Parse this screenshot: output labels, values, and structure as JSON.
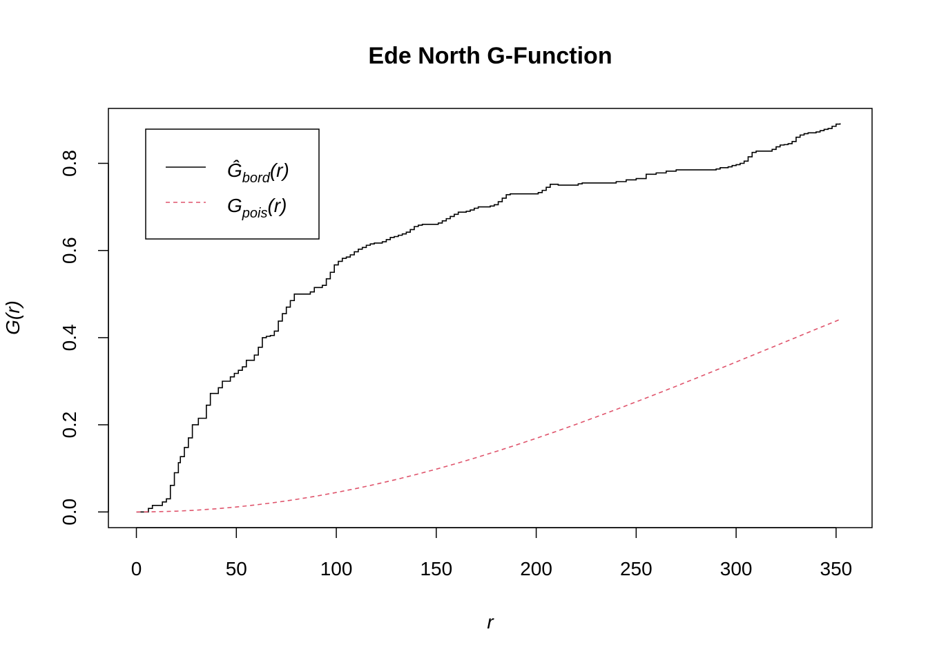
{
  "chart_data": {
    "type": "line",
    "title": "Ede North G-Function",
    "xlabel": "r",
    "ylabel": "G(r)",
    "xlim": [
      -14,
      368
    ],
    "ylim": [
      -0.036,
      0.926
    ],
    "xticks": [
      0,
      50,
      100,
      150,
      200,
      250,
      300,
      350
    ],
    "yticks": [
      0.0,
      0.2,
      0.4,
      0.6,
      0.8
    ],
    "ytick_labels": [
      "0.0",
      "0.2",
      "0.4",
      "0.6",
      "0.8"
    ],
    "grid": false,
    "legend_position": "top-left",
    "series": [
      {
        "name": "Ĝbord(r)",
        "legend_main": "Ĝ",
        "legend_sub": "bord",
        "legend_arg": "(r)",
        "color": "#000000",
        "dash": "solid",
        "x": [
          0,
          4,
          6,
          8,
          10,
          11,
          13,
          15,
          17,
          19,
          21,
          22,
          24,
          26,
          28,
          31,
          34,
          35,
          37,
          39,
          41,
          43,
          45,
          47,
          49,
          51,
          53,
          55,
          57,
          59,
          61,
          63,
          65,
          67,
          69,
          71,
          73,
          75,
          77,
          79,
          82,
          85,
          87,
          89,
          91,
          93,
          95,
          97,
          99,
          101,
          103,
          105,
          107,
          109,
          111,
          113,
          115,
          117,
          119,
          121,
          123,
          125,
          127,
          129,
          131,
          133,
          135,
          137,
          139,
          141,
          143,
          145,
          147,
          149,
          151,
          153,
          155,
          157,
          159,
          161,
          163,
          165,
          167,
          169,
          171,
          173,
          175,
          177,
          179,
          181,
          183,
          185,
          187,
          189,
          191,
          193,
          195,
          197,
          199,
          201,
          203,
          205,
          207,
          209,
          211,
          213,
          215,
          217,
          219,
          221,
          223,
          225,
          230,
          235,
          240,
          245,
          250,
          255,
          260,
          265,
          270,
          275,
          280,
          285,
          290,
          292,
          294,
          296,
          298,
          300,
          302,
          304,
          306,
          308,
          310,
          312,
          314,
          316,
          318,
          320,
          322,
          324,
          326,
          328,
          330,
          332,
          334,
          336,
          338,
          340,
          342,
          344,
          346,
          348,
          350,
          352
        ],
        "y": [
          0.0,
          0.0,
          0.008,
          0.015,
          0.015,
          0.015,
          0.023,
          0.03,
          0.061,
          0.09,
          0.113,
          0.127,
          0.148,
          0.17,
          0.2,
          0.215,
          0.215,
          0.245,
          0.272,
          0.272,
          0.285,
          0.3,
          0.3,
          0.31,
          0.318,
          0.325,
          0.333,
          0.348,
          0.348,
          0.36,
          0.378,
          0.4,
          0.403,
          0.405,
          0.415,
          0.438,
          0.455,
          0.47,
          0.485,
          0.5,
          0.5,
          0.5,
          0.505,
          0.515,
          0.515,
          0.52,
          0.535,
          0.55,
          0.567,
          0.575,
          0.582,
          0.585,
          0.59,
          0.597,
          0.603,
          0.607,
          0.612,
          0.615,
          0.617,
          0.617,
          0.62,
          0.625,
          0.63,
          0.632,
          0.635,
          0.638,
          0.642,
          0.648,
          0.655,
          0.658,
          0.66,
          0.66,
          0.66,
          0.66,
          0.663,
          0.668,
          0.673,
          0.678,
          0.683,
          0.688,
          0.688,
          0.69,
          0.693,
          0.697,
          0.7,
          0.7,
          0.7,
          0.702,
          0.705,
          0.712,
          0.72,
          0.728,
          0.73,
          0.73,
          0.73,
          0.73,
          0.73,
          0.73,
          0.73,
          0.733,
          0.738,
          0.745,
          0.752,
          0.752,
          0.75,
          0.75,
          0.75,
          0.75,
          0.75,
          0.753,
          0.755,
          0.755,
          0.755,
          0.755,
          0.758,
          0.762,
          0.765,
          0.775,
          0.778,
          0.782,
          0.785,
          0.785,
          0.785,
          0.785,
          0.787,
          0.79,
          0.79,
          0.792,
          0.795,
          0.797,
          0.8,
          0.805,
          0.815,
          0.825,
          0.828,
          0.828,
          0.828,
          0.828,
          0.832,
          0.838,
          0.842,
          0.843,
          0.845,
          0.85,
          0.86,
          0.865,
          0.868,
          0.87,
          0.87,
          0.872,
          0.875,
          0.878,
          0.88,
          0.885,
          0.89,
          0.892
        ]
      },
      {
        "name": "Gpois(r)",
        "legend_main": "G",
        "legend_sub": "pois",
        "legend_arg": "(r)",
        "color": "#DF536B",
        "dash": "dashed",
        "x": [
          0,
          10,
          20,
          30,
          40,
          50,
          60,
          70,
          80,
          90,
          100,
          110,
          120,
          130,
          140,
          150,
          160,
          170,
          180,
          190,
          200,
          210,
          220,
          230,
          240,
          250,
          260,
          270,
          280,
          290,
          300,
          310,
          320,
          330,
          340,
          350,
          352
        ],
        "y": [
          0.0,
          0.0005,
          0.0018,
          0.0041,
          0.0073,
          0.0114,
          0.0163,
          0.0221,
          0.0288,
          0.0363,
          0.0447,
          0.0538,
          0.0638,
          0.0745,
          0.086,
          0.0982,
          0.1111,
          0.1247,
          0.1389,
          0.1537,
          0.169,
          0.1848,
          0.2012,
          0.218,
          0.2351,
          0.2527,
          0.2705,
          0.2886,
          0.307,
          0.3255,
          0.3441,
          0.3629,
          0.3817,
          0.4005,
          0.4194,
          0.4381,
          0.4419
        ]
      }
    ]
  }
}
